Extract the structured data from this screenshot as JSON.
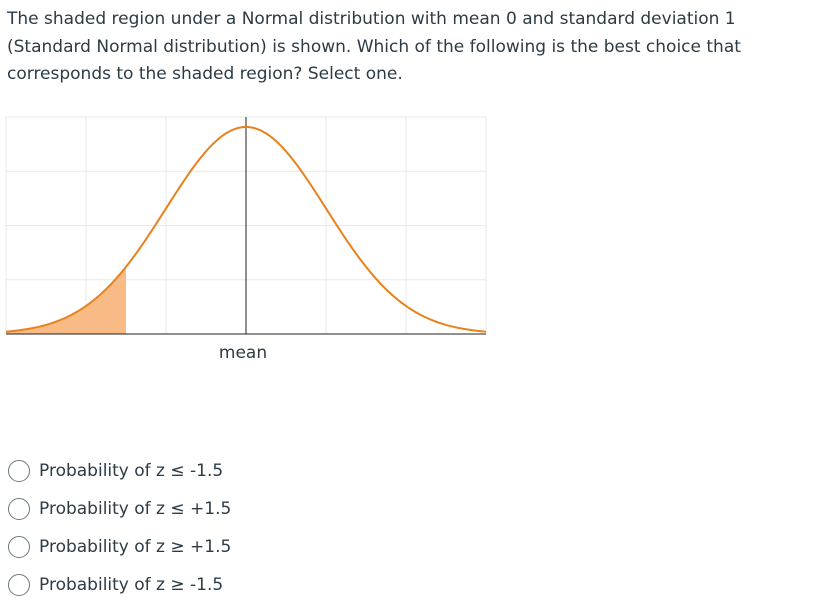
{
  "question": {
    "text": "The shaded region under a Normal distribution with mean 0 and standard deviation 1 (Standard Normal distribution) is shown. Which of the following is the best choice that corresponds to the shaded region? Select one."
  },
  "chart_data": {
    "type": "area",
    "distribution": "normal",
    "mean": 0,
    "sd": 1,
    "x_range": [
      -3,
      3
    ],
    "shaded_region": {
      "from": -3,
      "to": -1.5
    },
    "center_label": "mean",
    "grid": true,
    "colors": {
      "curve": "#e8821c",
      "shade": "#f8bb86",
      "grid": "#e8e8e8",
      "axis": "#222222"
    }
  },
  "options": [
    {
      "label": "Probability of z ≤ -1.5"
    },
    {
      "label": "Probability of z ≤ +1.5"
    },
    {
      "label": "Probability of z ≥ +1.5"
    },
    {
      "label": "Probability of z ≥ -1.5"
    }
  ]
}
